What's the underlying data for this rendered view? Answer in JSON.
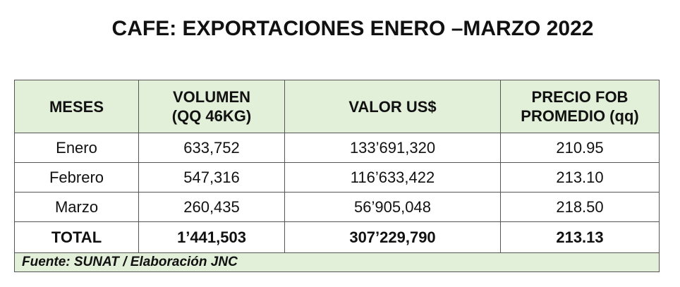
{
  "title": "CAFE: EXPORTACIONES ENERO –MARZO 2022",
  "table": {
    "header": [
      [
        "MESES"
      ],
      [
        "VOLUMEN",
        "(QQ 46KG)"
      ],
      [
        "VALOR US$"
      ],
      [
        "PRECIO FOB",
        "PROMEDIO (qq)"
      ]
    ],
    "rows": [
      [
        "Enero",
        "633,752",
        "133’691,320",
        "210.95"
      ],
      [
        "Febrero",
        "547,316",
        "116’633,422",
        "213.10"
      ],
      [
        "Marzo",
        "260,435",
        "56’905,048",
        "218.50"
      ]
    ],
    "total": [
      "TOTAL",
      "1’441,503",
      "307’229,790",
      "213.13"
    ],
    "source": "Fuente: SUNAT / Elaboración JNC"
  }
}
